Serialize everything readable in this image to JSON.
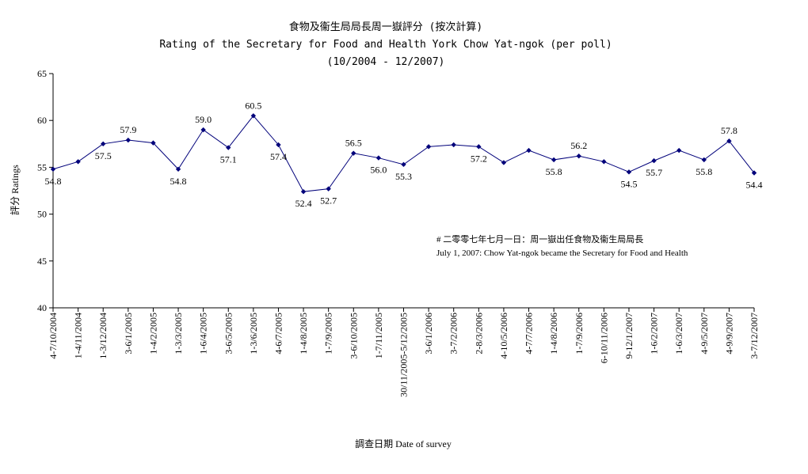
{
  "chart_data": {
    "type": "line",
    "title": [
      "食物及衞生局局長周一嶽評分 (按次計算)",
      "Rating of the Secretary for Food and Health York Chow Yat-ngok (per poll)",
      "(10/2004 - 12/2007)"
    ],
    "xlabel": "調查日期 Date of survey",
    "ylabel": "評分 Ratings",
    "ylim": [
      40,
      65
    ],
    "yticks": [
      40,
      45,
      50,
      55,
      60,
      65
    ],
    "grid": false,
    "categories": [
      "4-7/10/2004",
      "1-4/11/2004",
      "1-3/12/2004",
      "3-6/1/2005",
      "1-4/2/2005",
      "1-3/3/2005",
      "1-6/4/2005",
      "3-6/5/2005",
      "1-3/6/2005",
      "4-6/7/2005",
      "1-4/8/2005",
      "1-7/9/2005",
      "3-6/10/2005",
      "1-7/11/2005",
      "30/11/2005-5/12/2005",
      "3-6/1/2006",
      "3-7/2/2006",
      "2-8/3/2006",
      "4-10/5/2006",
      "4-7/7/2006",
      "1-4/8/2006",
      "1-7/9/2006",
      "6-10/11/2006",
      "9-12/1/2007",
      "1-6/2/2007",
      "1-6/3/2007",
      "4-9/5/2007",
      "4-9/9/2007",
      "3-7/12/2007"
    ],
    "series": [
      {
        "values": [
          54.8,
          55.6,
          57.5,
          57.9,
          57.6,
          54.8,
          59.0,
          57.1,
          60.5,
          57.4,
          52.4,
          52.7,
          56.5,
          56.0,
          55.3,
          57.2,
          57.4,
          57.2,
          55.5,
          56.8,
          55.8,
          56.2,
          55.6,
          54.5,
          55.7,
          56.8,
          55.8,
          57.8,
          54.4
        ],
        "color": "#00007a"
      }
    ],
    "data_labels": [
      "54.8",
      "",
      "57.5",
      "57.9",
      "",
      "54.8",
      "59.0",
      "57.1",
      "60.5",
      "57.4",
      "52.4",
      "52.7",
      "56.5",
      "56.0",
      "55.3",
      "",
      "",
      "57.2",
      "",
      "",
      "55.8",
      "56.2",
      "",
      "54.5",
      "55.7",
      "",
      "55.8",
      "57.8",
      "54.4"
    ],
    "annotation": [
      "# 二零零七年七月一日：周一嶽出任食物及衞生局局長",
      "July 1, 2007: Chow Yat-ngok became the Secretary for Food and Health"
    ]
  }
}
